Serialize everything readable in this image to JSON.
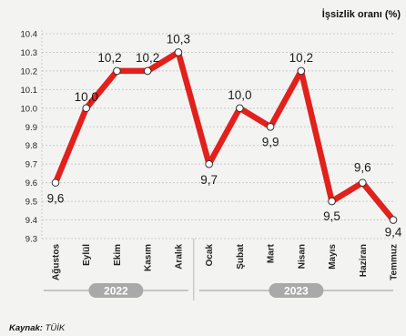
{
  "chart_data": {
    "type": "line",
    "title": "İşsizlik oranı (%)",
    "categories": [
      "Ağustos",
      "Eylül",
      "Ekim",
      "Kasım",
      "Aralık",
      "Ocak",
      "Şubat",
      "Mart",
      "Nisan",
      "Mayıs",
      "Haziran",
      "Temmuz"
    ],
    "values": [
      9.6,
      10.0,
      10.2,
      10.2,
      10.3,
      9.7,
      10.0,
      9.9,
      10.2,
      9.5,
      9.6,
      9.4
    ],
    "data_labels": [
      "9,6",
      "10,0",
      "10,2",
      "10,2",
      "10,3",
      "9,7",
      "10,0",
      "9,9",
      "10,2",
      "9,5",
      "9,6",
      "9,4"
    ],
    "ylim": [
      9.3,
      10.4
    ],
    "yticks": [
      "9.3",
      "9.4",
      "9.5",
      "9.6",
      "9.7",
      "9.8",
      "9.9",
      "10.0",
      "10.1",
      "10.2",
      "10.3",
      "10.4"
    ],
    "year_groups": [
      {
        "label": "2022",
        "start": 0,
        "end": 4
      },
      {
        "label": "2023",
        "start": 5,
        "end": 11
      }
    ],
    "grid": true,
    "line_color": "#e2201c",
    "year_color": "#a9a9a9"
  },
  "source": {
    "label": "Kaynak:",
    "text": " TÜİK"
  }
}
